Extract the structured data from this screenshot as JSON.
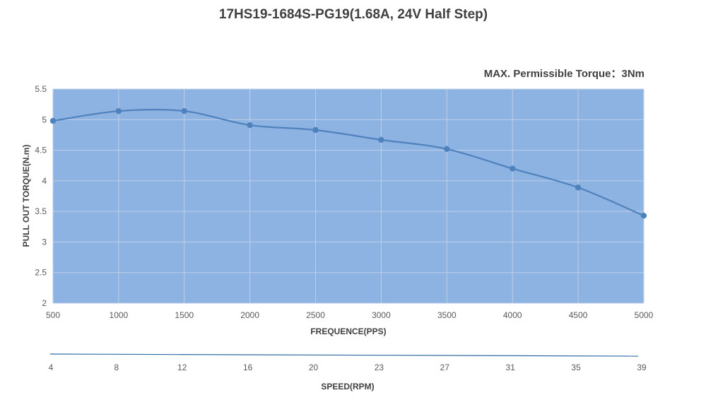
{
  "chart_data": {
    "type": "line",
    "title": "17HS19-1684S-PG19(1.68A, 24V Half Step)",
    "annotation": "MAX. Permissible Torque：3Nm",
    "xlabel": "FREQUENCE(PPS)",
    "ylabel": "PULL OUT TORQUE(N.m)",
    "secondary_xlabel": "SPEED(RPM)",
    "x": [
      500,
      1000,
      1500,
      2000,
      2500,
      3000,
      3500,
      4000,
      4500,
      5000
    ],
    "x_tick_labels": [
      "500",
      "1000",
      "1500",
      "2000",
      "2500",
      "3000",
      "3500",
      "4000",
      "4500",
      "5000"
    ],
    "secondary_x_tick_labels": [
      "4",
      "8",
      "12",
      "16",
      "20",
      "23",
      "27",
      "31",
      "35",
      "39"
    ],
    "y_tick_labels": [
      "2",
      "2.5",
      "3",
      "3.5",
      "4",
      "4.5",
      "5",
      "5.5"
    ],
    "ylim": [
      2,
      5.5
    ],
    "xlim": [
      500,
      5000
    ],
    "y_ticks": [
      2,
      2.5,
      3,
      3.5,
      4,
      4.5,
      5,
      5.5
    ],
    "grid": true,
    "series": [
      {
        "values": [
          4.98,
          5.14,
          5.14,
          4.91,
          4.83,
          4.67,
          4.52,
          4.2,
          3.89,
          3.43
        ]
      }
    ],
    "colors": {
      "plot_background": "#8db3e2",
      "line": "#4f81bd",
      "marker": "#4f81bd",
      "grid": "#bfd0e6",
      "secondary_axis_line": "#2e6da4"
    }
  }
}
